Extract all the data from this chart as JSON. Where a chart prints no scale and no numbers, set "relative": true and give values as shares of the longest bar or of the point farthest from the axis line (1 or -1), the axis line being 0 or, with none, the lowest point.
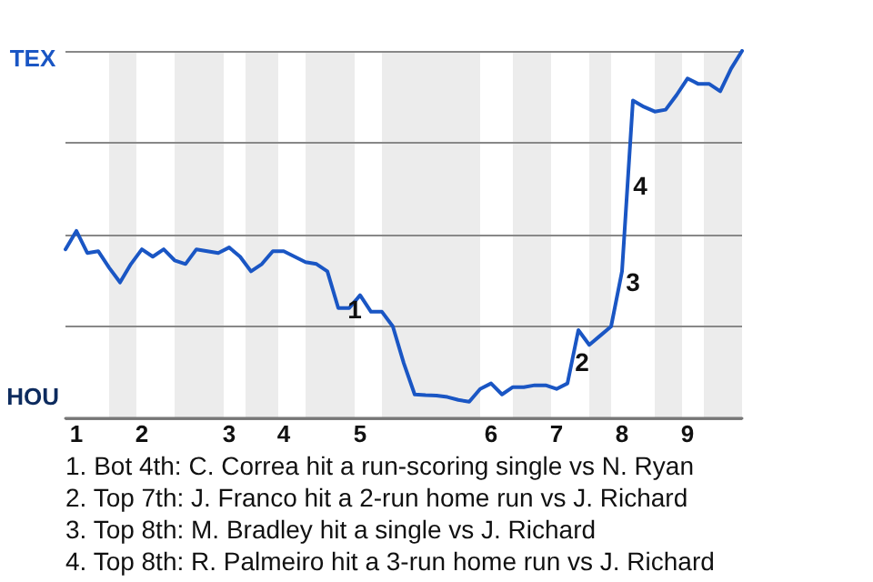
{
  "chart_data": {
    "type": "line",
    "relative": true,
    "categories": [
      null,
      "1",
      null,
      null,
      null,
      null,
      null,
      "2",
      null,
      null,
      null,
      null,
      null,
      null,
      null,
      "3",
      null,
      null,
      null,
      null,
      "4",
      null,
      null,
      null,
      null,
      null,
      null,
      "5",
      null,
      null,
      null,
      null,
      null,
      null,
      null,
      null,
      null,
      null,
      null,
      "6",
      null,
      null,
      null,
      null,
      null,
      "7",
      null,
      null,
      null,
      null,
      null,
      "8",
      null,
      null,
      null,
      null,
      null,
      "9",
      null,
      null,
      null,
      null,
      null
    ],
    "grid": "y",
    "marker": "none",
    "line_style": "solid",
    "series": [
      {
        "color": "#1a56c4",
        "values": [
          0.46,
          0.51,
          0.45,
          0.455,
          0.41,
          0.37,
          0.42,
          0.46,
          0.44,
          0.46,
          0.43,
          0.42,
          0.46,
          0.455,
          0.45,
          0.465,
          0.44,
          0.4,
          0.42,
          0.455,
          0.455,
          0.44,
          0.425,
          0.42,
          0.4,
          0.3,
          0.3,
          0.335,
          0.29,
          0.29,
          0.25,
          0.15,
          0.065,
          0.063,
          0.062,
          0.058,
          0.05,
          0.045,
          0.08,
          0.095,
          0.065,
          0.085,
          0.085,
          0.09,
          0.09,
          0.08,
          0.095,
          0.24,
          0.2,
          0.225,
          0.25,
          0.4,
          0.865,
          0.848,
          0.835,
          0.84,
          0.88,
          0.925,
          0.91,
          0.91,
          0.89,
          0.952,
          1.0
        ]
      }
    ],
    "annotations": [
      "TEX",
      "HOU",
      "1",
      "2",
      "3",
      "4",
      "1. Bot 4th: C. Correa hit a run-scoring single vs N. Ryan",
      "2. Top 7th: J. Franco hit a 2-run home run vs J. Richard",
      "3. Top 8th: M. Bradley hit a single vs J. Richard",
      "4. Top 8th: R. Palmeiro hit a 3-run home run vs J. Richard"
    ]
  }
}
